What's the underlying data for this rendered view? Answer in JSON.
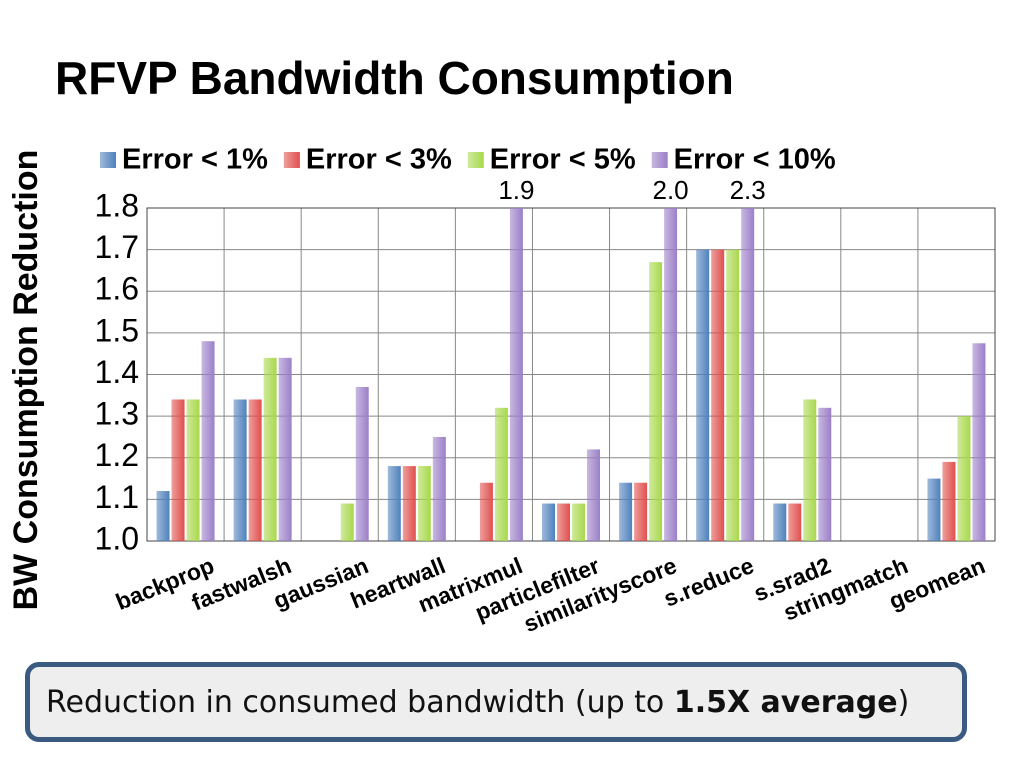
{
  "chart_data": {
    "type": "bar",
    "title": "RFVP Bandwidth Consumption",
    "y_label": "BW Consumption Reduction",
    "categories": [
      "backprop",
      "fastwalsh",
      "gaussian",
      "heartwall",
      "matrixmul",
      "particlefilter",
      "similarityscore",
      "s.reduce",
      "s.srad2",
      "stringmatch",
      "geomean"
    ],
    "series": [
      {
        "name": "Error < 1%",
        "color": "#4f81bd",
        "values": [
          1.12,
          1.34,
          1.0,
          1.18,
          1.0,
          1.09,
          1.14,
          1.7,
          1.09,
          1.0,
          1.15
        ]
      },
      {
        "name": "Error < 3%",
        "color": "#e0504d",
        "values": [
          1.34,
          1.34,
          1.0,
          1.18,
          1.14,
          1.09,
          1.14,
          1.7,
          1.09,
          1.0,
          1.19
        ]
      },
      {
        "name": "Error < 5%",
        "color": "#a8d84c",
        "values": [
          1.34,
          1.44,
          1.09,
          1.18,
          1.32,
          1.09,
          1.67,
          1.7,
          1.34,
          1.0,
          1.3
        ]
      },
      {
        "name": "Error < 10%",
        "color": "#9b7fc8",
        "values": [
          1.48,
          1.44,
          1.37,
          1.25,
          1.9,
          1.22,
          2.0,
          2.3,
          1.32,
          1.0,
          1.475
        ],
        "value_labels": [
          null,
          null,
          null,
          null,
          "1.9",
          null,
          "2.0",
          "2.3",
          null,
          null,
          null
        ]
      }
    ],
    "ylim": [
      1.0,
      1.8
    ],
    "yticks": [
      {
        "value": 1.0,
        "label": "1.0"
      },
      1.1,
      1.2,
      1.3,
      1.4,
      1.5,
      1.6,
      1.7,
      1.8
    ],
    "grid": true,
    "legend": "top"
  },
  "caption": {
    "before": "Reduction in consumed bandwidth (up to ",
    "bold": "1.5X average",
    "after": ")"
  }
}
